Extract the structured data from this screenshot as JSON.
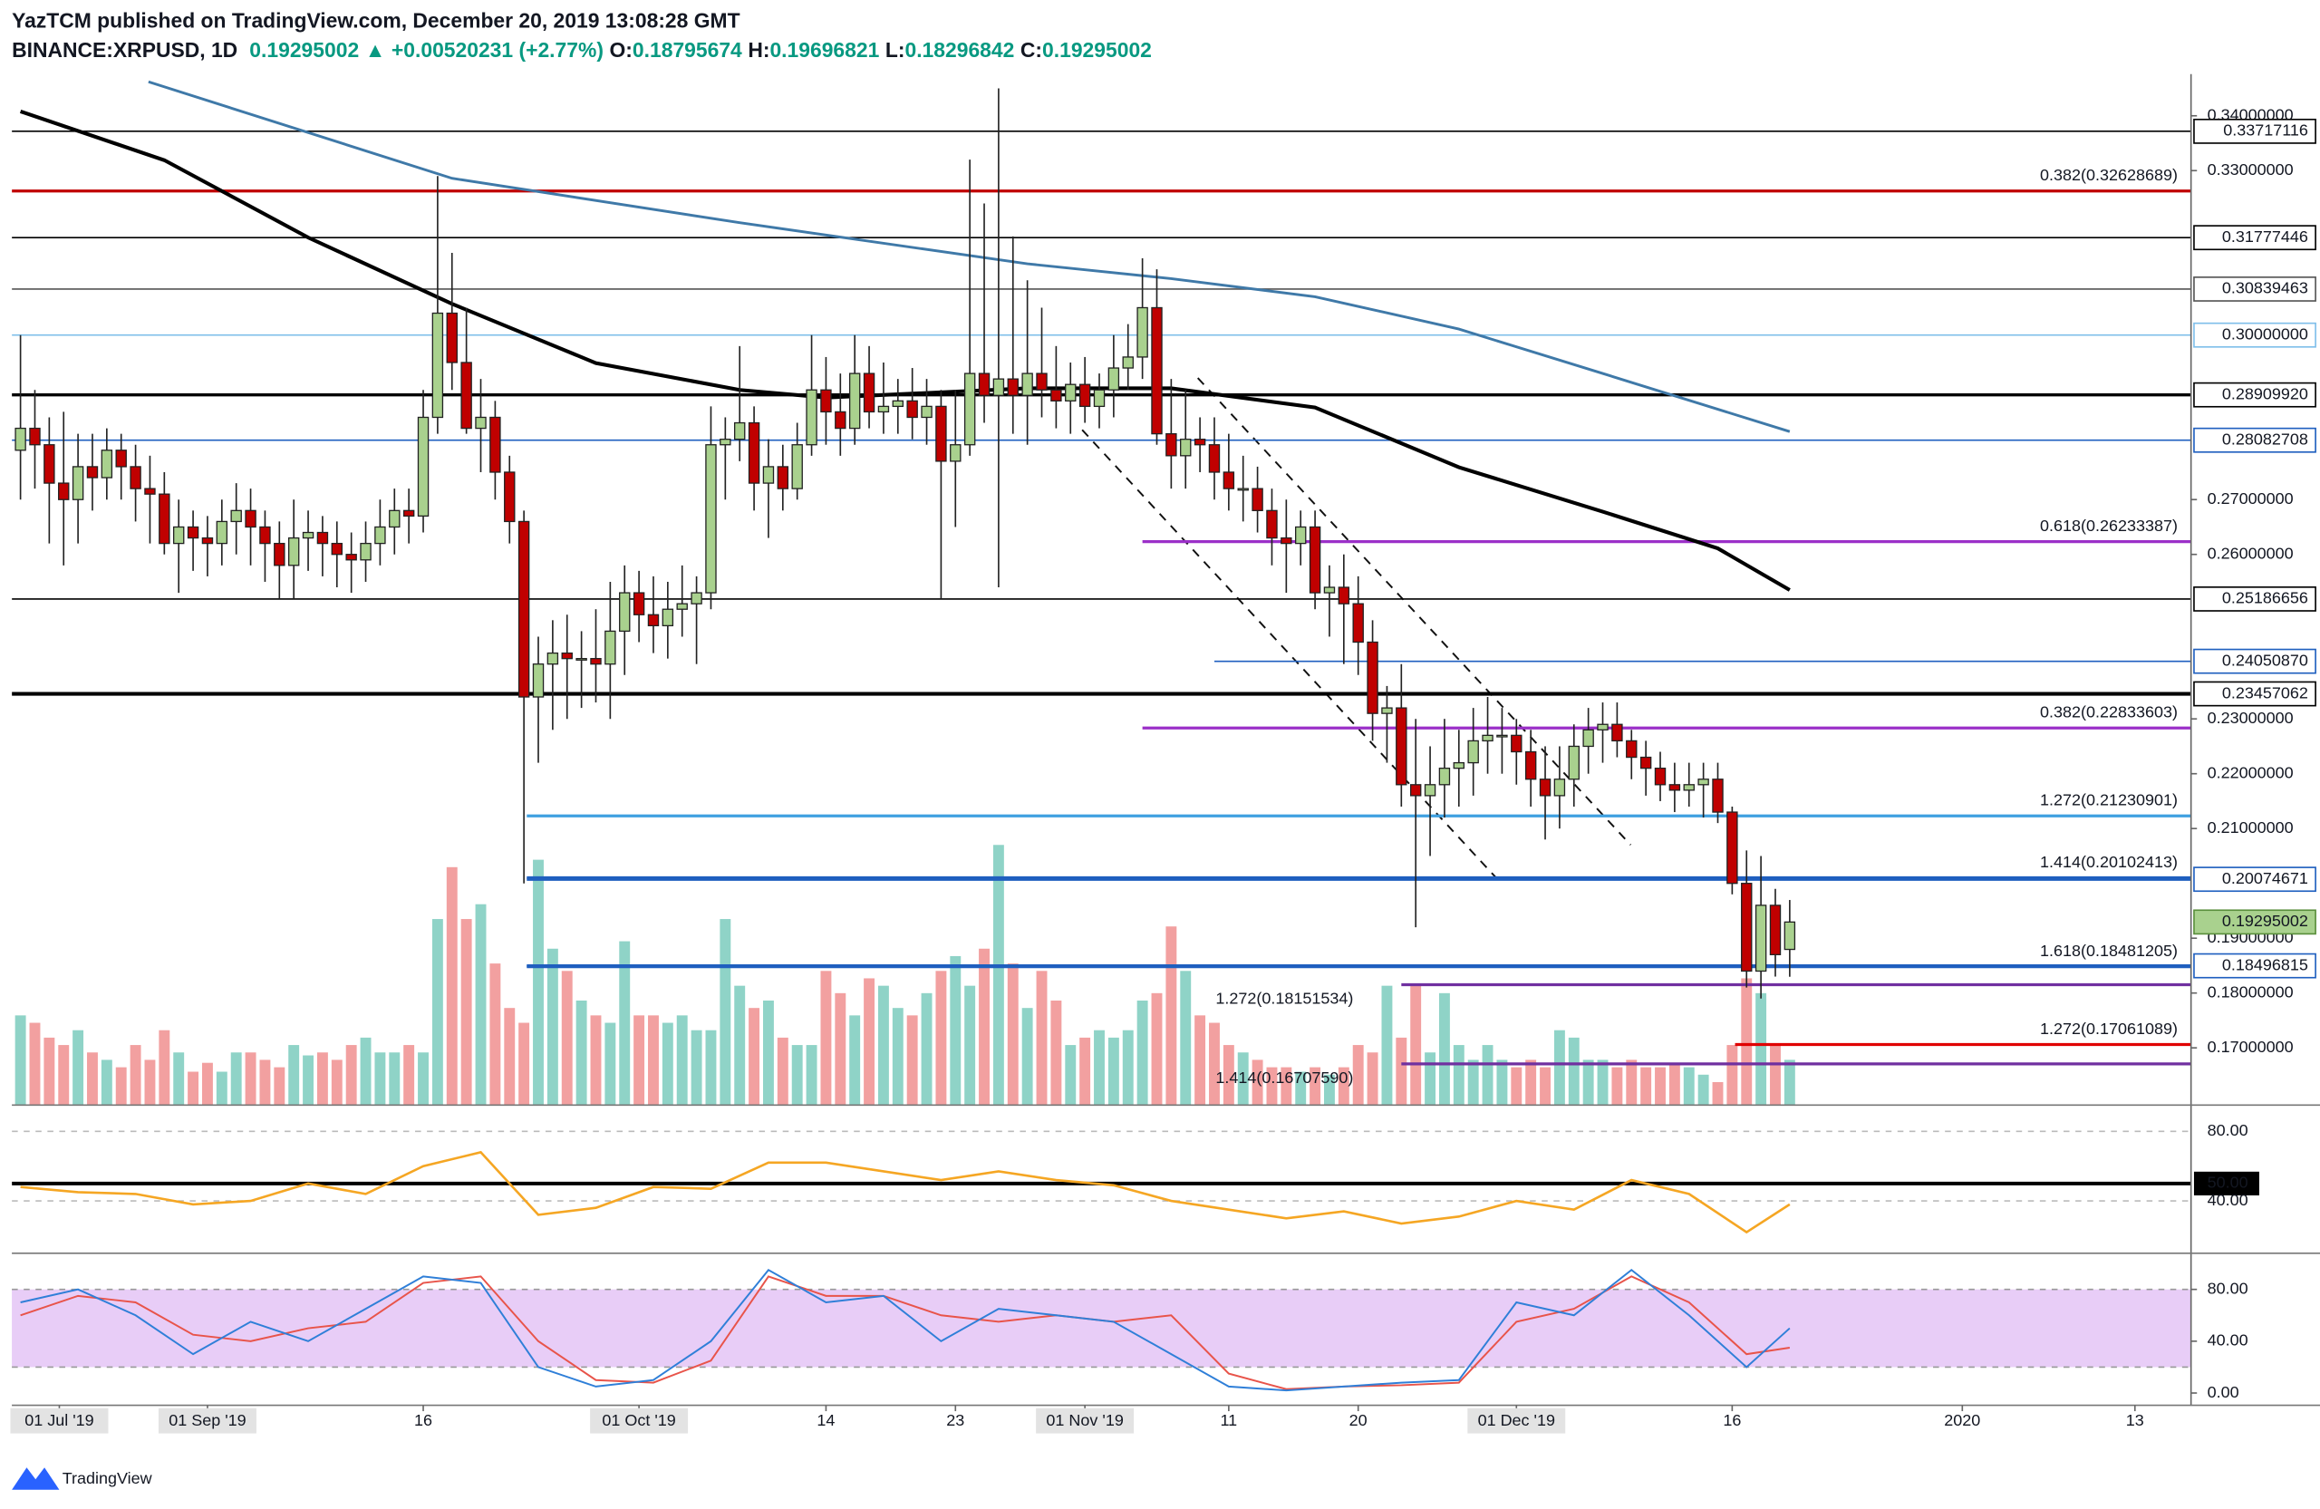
{
  "header": {
    "publisher": "YazTCM published on TradingView.com, December 20, 2019 13:08:28 GMT",
    "symbol": "BINANCE:XRPUSD, 1D",
    "last": "0.19295002",
    "arrow": "▲",
    "change": "+0.00520231 (+2.77%)",
    "o_label": "O:",
    "o": "0.18795674",
    "h_label": "H:",
    "h": "0.19696821",
    "l_label": "L:",
    "l": "0.18296842",
    "c_label": "C:",
    "c": "0.19295002"
  },
  "footer": {
    "brand": "TradingView"
  },
  "chart_data": {
    "type": "candlestick",
    "up_color": "#a9d18e",
    "down_color": "#c00000",
    "volume_up_color": "#8fd3c7",
    "volume_down_color": "#f2a0a0",
    "xlim": [
      -0.6,
      150.9
    ],
    "ylim": [
      0.1597,
      0.3476
    ],
    "yticks": [
      {
        "value": 0.34,
        "label": "0.34000000"
      },
      {
        "value": 0.33,
        "label": "0.33000000"
      },
      {
        "value": 0.27,
        "label": "0.27000000"
      },
      {
        "value": 0.26,
        "label": "0.26000000"
      },
      {
        "value": 0.23,
        "label": "0.23000000"
      },
      {
        "value": 0.22,
        "label": "0.22000000"
      },
      {
        "value": 0.21,
        "label": "0.21000000"
      },
      {
        "value": 0.19,
        "label": "0.19000000"
      },
      {
        "value": 0.18,
        "label": "0.18000000"
      },
      {
        "value": 0.17,
        "label": "0.17000000"
      }
    ],
    "xticks": [
      {
        "value": 2.7,
        "label": "01 Jul '19",
        "boxed": true
      },
      {
        "value": 13,
        "label": "01 Sep '19",
        "boxed": true
      },
      {
        "value": 28,
        "label": "16"
      },
      {
        "value": 43,
        "label": "01 Oct '19",
        "boxed": true
      },
      {
        "value": 56,
        "label": "14"
      },
      {
        "value": 65,
        "label": "23"
      },
      {
        "value": 74,
        "label": "01 Nov '19",
        "boxed": true
      },
      {
        "value": 84,
        "label": "11"
      },
      {
        "value": 93,
        "label": "20"
      },
      {
        "value": 104,
        "label": "01 Dec '19",
        "boxed": true
      },
      {
        "value": 119,
        "label": "16"
      },
      {
        "value": 135,
        "label": "2020"
      },
      {
        "value": 147,
        "label": "13"
      }
    ],
    "candles": [
      [
        0.279,
        0.3,
        0.27,
        0.283
      ],
      [
        0.283,
        0.29,
        0.272,
        0.28
      ],
      [
        0.28,
        0.285,
        0.262,
        0.273
      ],
      [
        0.273,
        0.286,
        0.258,
        0.27
      ],
      [
        0.27,
        0.282,
        0.262,
        0.276
      ],
      [
        0.276,
        0.282,
        0.268,
        0.274
      ],
      [
        0.274,
        0.283,
        0.27,
        0.279
      ],
      [
        0.279,
        0.282,
        0.27,
        0.276
      ],
      [
        0.276,
        0.28,
        0.266,
        0.272
      ],
      [
        0.272,
        0.278,
        0.262,
        0.271
      ],
      [
        0.271,
        0.275,
        0.26,
        0.262
      ],
      [
        0.262,
        0.27,
        0.253,
        0.265
      ],
      [
        0.265,
        0.268,
        0.257,
        0.263
      ],
      [
        0.263,
        0.267,
        0.256,
        0.262
      ],
      [
        0.262,
        0.27,
        0.258,
        0.266
      ],
      [
        0.266,
        0.273,
        0.26,
        0.268
      ],
      [
        0.268,
        0.272,
        0.258,
        0.265
      ],
      [
        0.265,
        0.268,
        0.255,
        0.262
      ],
      [
        0.262,
        0.266,
        0.252,
        0.258
      ],
      [
        0.258,
        0.27,
        0.252,
        0.263
      ],
      [
        0.263,
        0.268,
        0.257,
        0.264
      ],
      [
        0.264,
        0.267,
        0.256,
        0.262
      ],
      [
        0.262,
        0.266,
        0.254,
        0.26
      ],
      [
        0.26,
        0.264,
        0.253,
        0.259
      ],
      [
        0.259,
        0.266,
        0.255,
        0.262
      ],
      [
        0.262,
        0.27,
        0.258,
        0.265
      ],
      [
        0.265,
        0.272,
        0.26,
        0.268
      ],
      [
        0.268,
        0.272,
        0.262,
        0.267
      ],
      [
        0.267,
        0.29,
        0.264,
        0.285
      ],
      [
        0.285,
        0.329,
        0.282,
        0.304
      ],
      [
        0.304,
        0.315,
        0.29,
        0.295
      ],
      [
        0.295,
        0.305,
        0.282,
        0.283
      ],
      [
        0.283,
        0.292,
        0.275,
        0.285
      ],
      [
        0.285,
        0.288,
        0.27,
        0.275
      ],
      [
        0.275,
        0.278,
        0.262,
        0.266
      ],
      [
        0.266,
        0.268,
        0.2,
        0.234
      ],
      [
        0.234,
        0.245,
        0.222,
        0.24
      ],
      [
        0.24,
        0.248,
        0.228,
        0.242
      ],
      [
        0.242,
        0.249,
        0.23,
        0.241
      ],
      [
        0.241,
        0.246,
        0.232,
        0.241
      ],
      [
        0.241,
        0.25,
        0.233,
        0.24
      ],
      [
        0.24,
        0.255,
        0.23,
        0.246
      ],
      [
        0.246,
        0.258,
        0.238,
        0.253
      ],
      [
        0.253,
        0.257,
        0.244,
        0.249
      ],
      [
        0.249,
        0.256,
        0.242,
        0.247
      ],
      [
        0.247,
        0.255,
        0.241,
        0.25
      ],
      [
        0.25,
        0.258,
        0.245,
        0.251
      ],
      [
        0.251,
        0.256,
        0.24,
        0.253
      ],
      [
        0.253,
        0.287,
        0.25,
        0.28
      ],
      [
        0.28,
        0.285,
        0.27,
        0.281
      ],
      [
        0.281,
        0.298,
        0.277,
        0.284
      ],
      [
        0.284,
        0.287,
        0.268,
        0.273
      ],
      [
        0.273,
        0.281,
        0.263,
        0.276
      ],
      [
        0.276,
        0.28,
        0.268,
        0.272
      ],
      [
        0.272,
        0.284,
        0.27,
        0.28
      ],
      [
        0.28,
        0.3,
        0.278,
        0.29
      ],
      [
        0.29,
        0.296,
        0.28,
        0.286
      ],
      [
        0.286,
        0.293,
        0.278,
        0.283
      ],
      [
        0.283,
        0.3,
        0.28,
        0.293
      ],
      [
        0.293,
        0.298,
        0.283,
        0.286
      ],
      [
        0.286,
        0.295,
        0.282,
        0.287
      ],
      [
        0.287,
        0.292,
        0.282,
        0.288
      ],
      [
        0.288,
        0.294,
        0.281,
        0.285
      ],
      [
        0.285,
        0.292,
        0.28,
        0.287
      ],
      [
        0.287,
        0.29,
        0.252,
        0.277
      ],
      [
        0.277,
        0.29,
        0.265,
        0.28
      ],
      [
        0.28,
        0.332,
        0.278,
        0.293
      ],
      [
        0.293,
        0.324,
        0.284,
        0.289
      ],
      [
        0.289,
        0.345,
        0.254,
        0.292
      ],
      [
        0.292,
        0.318,
        0.282,
        0.289
      ],
      [
        0.289,
        0.31,
        0.28,
        0.293
      ],
      [
        0.293,
        0.305,
        0.285,
        0.29
      ],
      [
        0.29,
        0.298,
        0.283,
        0.288
      ],
      [
        0.288,
        0.295,
        0.282,
        0.291
      ],
      [
        0.291,
        0.296,
        0.284,
        0.287
      ],
      [
        0.287,
        0.293,
        0.283,
        0.29
      ],
      [
        0.29,
        0.3,
        0.285,
        0.294
      ],
      [
        0.294,
        0.302,
        0.29,
        0.296
      ],
      [
        0.296,
        0.314,
        0.292,
        0.305
      ],
      [
        0.305,
        0.312,
        0.28,
        0.282
      ],
      [
        0.282,
        0.292,
        0.272,
        0.278
      ],
      [
        0.278,
        0.29,
        0.272,
        0.281
      ],
      [
        0.281,
        0.285,
        0.275,
        0.28
      ],
      [
        0.28,
        0.285,
        0.27,
        0.275
      ],
      [
        0.275,
        0.282,
        0.268,
        0.272
      ],
      [
        0.272,
        0.278,
        0.266,
        0.272
      ],
      [
        0.272,
        0.276,
        0.264,
        0.268
      ],
      [
        0.268,
        0.272,
        0.258,
        0.263
      ],
      [
        0.263,
        0.27,
        0.253,
        0.262
      ],
      [
        0.262,
        0.268,
        0.258,
        0.265
      ],
      [
        0.265,
        0.268,
        0.25,
        0.253
      ],
      [
        0.253,
        0.258,
        0.245,
        0.254
      ],
      [
        0.254,
        0.26,
        0.24,
        0.251
      ],
      [
        0.251,
        0.256,
        0.238,
        0.244
      ],
      [
        0.244,
        0.248,
        0.226,
        0.231
      ],
      [
        0.231,
        0.236,
        0.222,
        0.232
      ],
      [
        0.232,
        0.24,
        0.214,
        0.218
      ],
      [
        0.218,
        0.23,
        0.192,
        0.216
      ],
      [
        0.216,
        0.225,
        0.205,
        0.218
      ],
      [
        0.218,
        0.23,
        0.212,
        0.221
      ],
      [
        0.221,
        0.228,
        0.214,
        0.222
      ],
      [
        0.222,
        0.232,
        0.216,
        0.226
      ],
      [
        0.226,
        0.234,
        0.22,
        0.227
      ],
      [
        0.227,
        0.232,
        0.22,
        0.227
      ],
      [
        0.227,
        0.23,
        0.218,
        0.224
      ],
      [
        0.224,
        0.228,
        0.214,
        0.219
      ],
      [
        0.219,
        0.225,
        0.208,
        0.216
      ],
      [
        0.216,
        0.225,
        0.21,
        0.219
      ],
      [
        0.219,
        0.229,
        0.214,
        0.225
      ],
      [
        0.225,
        0.232,
        0.22,
        0.228
      ],
      [
        0.228,
        0.233,
        0.222,
        0.229
      ],
      [
        0.229,
        0.233,
        0.223,
        0.226
      ],
      [
        0.226,
        0.228,
        0.219,
        0.223
      ],
      [
        0.223,
        0.226,
        0.216,
        0.221
      ],
      [
        0.221,
        0.224,
        0.215,
        0.218
      ],
      [
        0.218,
        0.222,
        0.213,
        0.217
      ],
      [
        0.217,
        0.222,
        0.214,
        0.218
      ],
      [
        0.218,
        0.222,
        0.212,
        0.219
      ],
      [
        0.219,
        0.222,
        0.211,
        0.213
      ],
      [
        0.213,
        0.214,
        0.198,
        0.2
      ],
      [
        0.2,
        0.206,
        0.181,
        0.184
      ],
      [
        0.184,
        0.205,
        0.179,
        0.196
      ],
      [
        0.196,
        0.199,
        0.183,
        0.187
      ],
      [
        0.18795674,
        0.19696821,
        0.18296842,
        0.19295002
      ]
    ],
    "volume": [
      60,
      55,
      45,
      40,
      50,
      35,
      30,
      25,
      40,
      30,
      50,
      35,
      22,
      28,
      22,
      35,
      35,
      30,
      25,
      40,
      33,
      35,
      30,
      40,
      45,
      35,
      35,
      40,
      35,
      125,
      160,
      125,
      135,
      95,
      65,
      55,
      165,
      105,
      90,
      70,
      60,
      55,
      110,
      60,
      60,
      55,
      60,
      50,
      50,
      125,
      80,
      65,
      70,
      45,
      40,
      40,
      90,
      75,
      60,
      85,
      80,
      65,
      60,
      75,
      90,
      100,
      80,
      105,
      175,
      95,
      65,
      90,
      70,
      40,
      45,
      50,
      45,
      50,
      70,
      75,
      120,
      90,
      60,
      55,
      40,
      35,
      30,
      25,
      25,
      22,
      25,
      20,
      25,
      40,
      35,
      80,
      45,
      80,
      35,
      75,
      40,
      30,
      40,
      30,
      25,
      30,
      25,
      50,
      45,
      30,
      30,
      25,
      30,
      25,
      25,
      28,
      25,
      20,
      15,
      40,
      85,
      75,
      40,
      30
    ],
    "ma": [
      {
        "color": "#3f79a8",
        "x": [
          8.9,
          30,
          50,
          70,
          80,
          90,
          100,
          110,
          123
        ],
        "values": [
          0.3462,
          0.3286,
          0.3205,
          0.313,
          0.3103,
          0.307,
          0.3011,
          0.293,
          0.2824
        ]
      },
      {
        "color": "#000000",
        "x": [
          0,
          10,
          20,
          30,
          40,
          50,
          56,
          70,
          80,
          90,
          100,
          110,
          118,
          123
        ],
        "values": [
          0.3408,
          0.3319,
          0.3178,
          0.3057,
          0.2949,
          0.29,
          0.2886,
          0.2903,
          0.2903,
          0.2868,
          0.2759,
          0.2678,
          0.2611,
          0.2535
        ]
      }
    ],
    "levels": [
      {
        "value": 0.33717116,
        "label": "0.33717116",
        "color": "#000000",
        "width": 1,
        "from": -0.6
      },
      {
        "value": 0.31777446,
        "label": "0.31777446",
        "color": "#000000",
        "width": 1,
        "from": -0.6
      },
      {
        "value": 0.30839463,
        "label": "0.30839463",
        "color": "#555555",
        "width": 1,
        "from": -0.6
      },
      {
        "value": 0.3,
        "label": "0.30000000",
        "color": "#7fbfea",
        "width": 1,
        "from": -0.6
      },
      {
        "value": 0.2890992,
        "label": "0.28909920",
        "color": "#000000",
        "width": 2,
        "from": -0.6
      },
      {
        "value": 0.28082708,
        "label": "0.28082708",
        "color": "#1f5fbf",
        "width": 1,
        "from": -0.6
      },
      {
        "value": 0.25186656,
        "label": "0.25186656",
        "color": "#000000",
        "width": 1,
        "from": -0.6
      },
      {
        "value": 0.2405087,
        "label": "0.24050870",
        "color": "#1f5fbf",
        "width": 1,
        "from": 83
      },
      {
        "value": 0.23457062,
        "label": "0.23457062",
        "color": "#000000",
        "width": 2.5,
        "from": -0.6
      },
      {
        "value": 0.20074671,
        "label": "0.20074671",
        "color": "#1f5fbf",
        "width": 2,
        "from": 35.2
      },
      {
        "value": 0.18496815,
        "label": "0.18496815",
        "color": "#1f5fbf",
        "width": 2,
        "from": 35.2
      }
    ],
    "last_price": {
      "value": 0.19295002,
      "label": "0.19295002",
      "color": "#a9d18e"
    },
    "fibs": [
      {
        "value": 0.32628689,
        "label": "0.382(0.32628689)",
        "color": "#c00000",
        "from": -0.6,
        "side": "right"
      },
      {
        "value": 0.26233387,
        "label": "0.618(0.26233387)",
        "color": "#9b30c8",
        "from": 78,
        "side": "right"
      },
      {
        "value": 0.22833603,
        "label": "0.382(0.22833603)",
        "color": "#9b30c8",
        "from": 78,
        "side": "right"
      },
      {
        "value": 0.21230901,
        "label": "1.272(0.21230901)",
        "color": "#3fa0e0",
        "from": 35.2,
        "side": "right"
      },
      {
        "value": 0.20102413,
        "label": "1.414(0.20102413)",
        "color": "#1f5fbf",
        "from": 35.2,
        "side": "right"
      },
      {
        "value": 0.18481205,
        "label": "1.618(0.18481205)",
        "color": "#1f5fbf",
        "from": 35.2,
        "side": "right"
      },
      {
        "value": 0.18151534,
        "label": "1.272(0.18151534)",
        "color": "#7030a0",
        "from": 96,
        "side": "left"
      },
      {
        "value": 0.17061089,
        "label": "1.272(0.17061089)",
        "color": "#e00000",
        "from": 119.2,
        "side": "right"
      },
      {
        "value": 0.1670759,
        "label": "1.414(0.16707590)",
        "color": "#7030a0",
        "from": 96,
        "side": "left"
      }
    ],
    "rsi": {
      "color": "#f5a623",
      "ylim": [
        12,
        93
      ],
      "yticks": [
        {
          "value": 80,
          "label": "80.00"
        },
        {
          "value": 50,
          "label": "50.00",
          "boxed": true
        },
        {
          "value": 40,
          "label": "40.00"
        }
      ],
      "x": [
        0,
        4,
        8,
        12,
        16,
        20,
        24,
        28,
        32,
        36,
        40,
        44,
        48,
        52,
        56,
        60,
        64,
        68,
        72,
        76,
        80,
        84,
        88,
        92,
        96,
        100,
        104,
        108,
        112,
        116,
        120,
        123
      ],
      "values": [
        48,
        45,
        44,
        38,
        40,
        50,
        44,
        60,
        68,
        32,
        36,
        48,
        47,
        62,
        62,
        57,
        52,
        57,
        52,
        49,
        40,
        35,
        30,
        34,
        27,
        31,
        40,
        35,
        52,
        44,
        22,
        38
      ]
    },
    "stoch": {
      "k_color": "#2f7fd8",
      "d_color": "#e8544a",
      "band": [
        20,
        80
      ],
      "band_color": "#e8cdf7",
      "ylim": [
        -6,
        105
      ],
      "yticks": [
        {
          "value": 80,
          "label": "80.00"
        },
        {
          "value": 40,
          "label": "40.00"
        },
        {
          "value": 0,
          "label": "0.00"
        }
      ],
      "x": [
        0,
        4,
        8,
        12,
        16,
        20,
        24,
        28,
        32,
        36,
        40,
        44,
        48,
        52,
        56,
        60,
        64,
        68,
        72,
        76,
        80,
        84,
        88,
        92,
        96,
        100,
        104,
        108,
        112,
        116,
        120,
        123
      ],
      "k": [
        70,
        80,
        60,
        30,
        55,
        40,
        65,
        90,
        85,
        20,
        5,
        10,
        40,
        95,
        70,
        75,
        40,
        65,
        60,
        55,
        30,
        5,
        2,
        5,
        8,
        10,
        70,
        60,
        95,
        60,
        20,
        50
      ],
      "d": [
        60,
        75,
        70,
        45,
        40,
        50,
        55,
        85,
        90,
        40,
        10,
        8,
        25,
        90,
        75,
        75,
        60,
        55,
        60,
        55,
        60,
        15,
        3,
        5,
        6,
        8,
        55,
        65,
        90,
        70,
        30,
        35
      ]
    }
  }
}
